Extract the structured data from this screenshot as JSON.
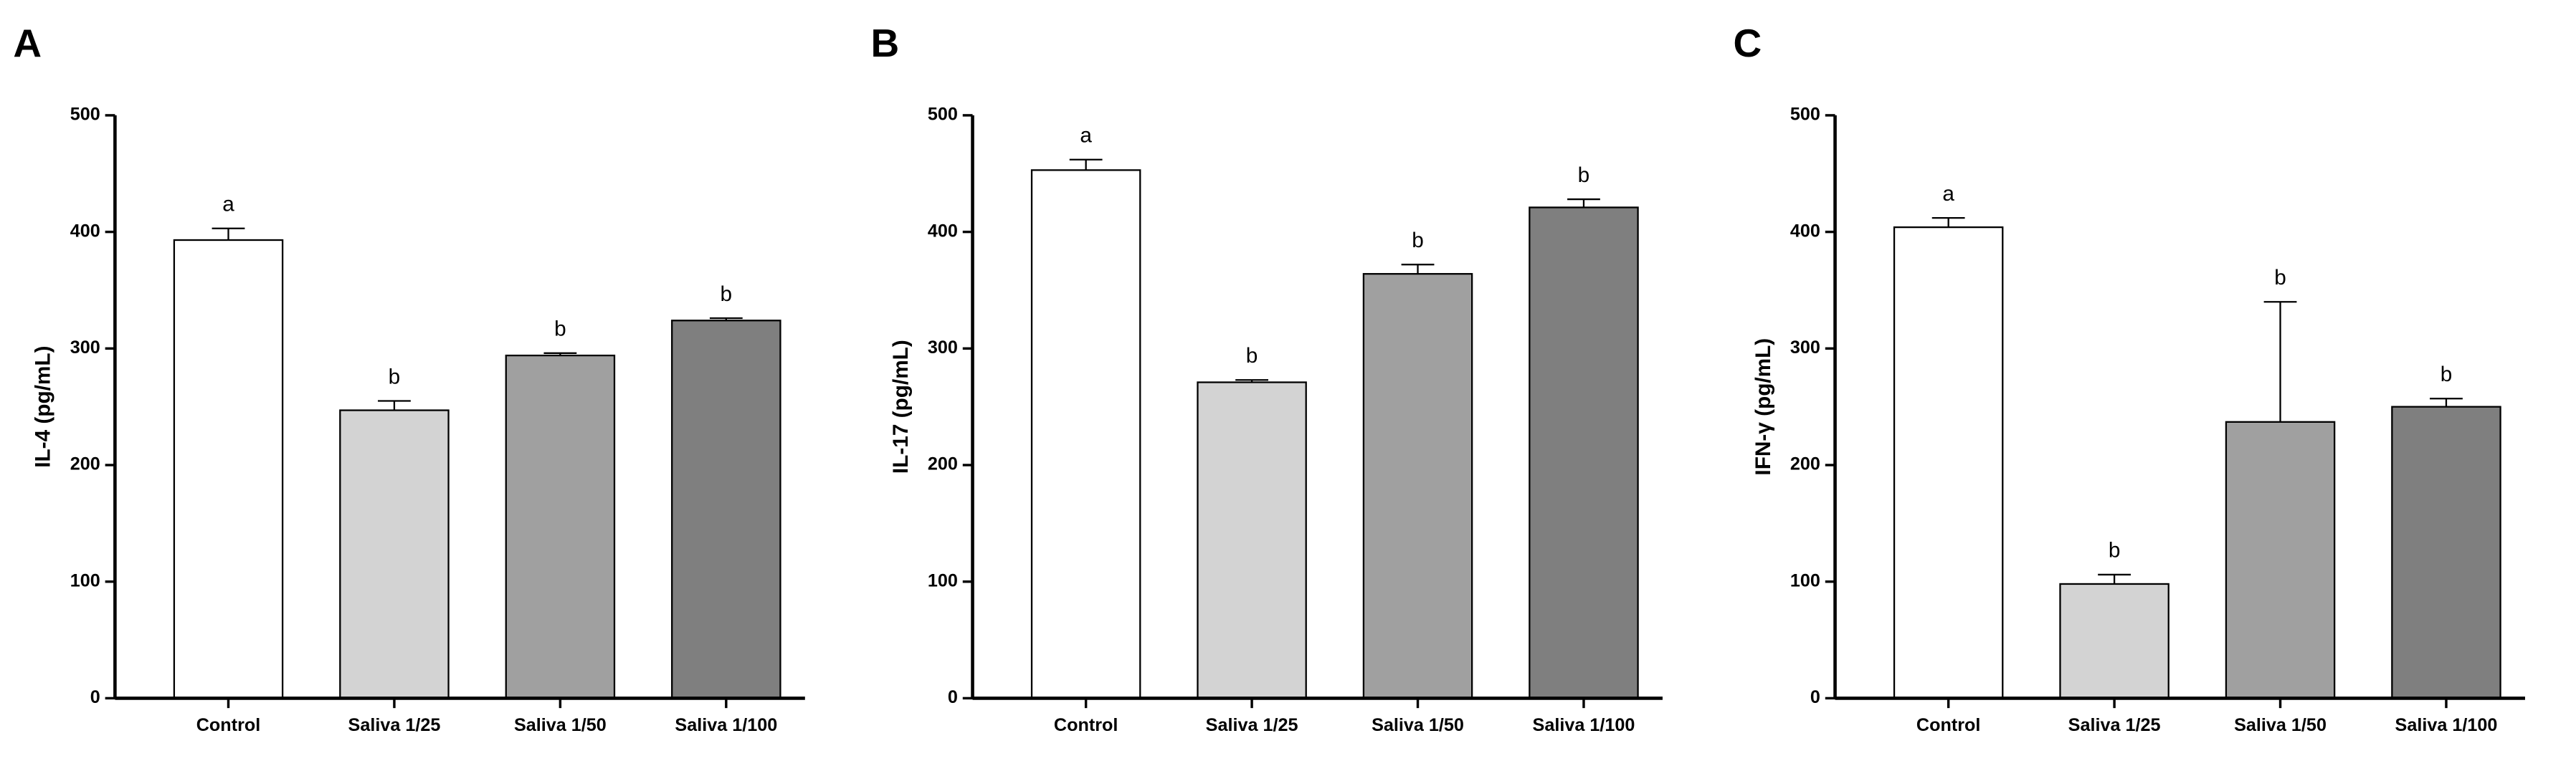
{
  "chart_data": [
    {
      "type": "bar",
      "panel": "A",
      "ylabel": "IL-4 (pg/mL)",
      "categories": [
        "Control",
        "Saliva 1/25",
        "Saliva 1/50",
        "Saliva 1/100"
      ],
      "values": [
        393,
        247,
        294,
        324
      ],
      "errors": [
        10,
        8,
        2,
        2
      ],
      "annotations": [
        "a",
        "b",
        "b",
        "b"
      ],
      "colors": [
        "#ffffff",
        "#d3d3d3",
        "#a0a0a0",
        "#7f7f7f"
      ],
      "ylim": [
        0,
        500
      ],
      "yticks": [
        0,
        100,
        200,
        300,
        400,
        500
      ]
    },
    {
      "type": "bar",
      "panel": "B",
      "ylabel": "IL-17 (pg/mL)",
      "categories": [
        "Control",
        "Saliva 1/25",
        "Saliva 1/50",
        "Saliva 1/100"
      ],
      "values": [
        453,
        271,
        364,
        421
      ],
      "errors": [
        9,
        2,
        8,
        7
      ],
      "annotations": [
        "a",
        "b",
        "b",
        "b"
      ],
      "colors": [
        "#ffffff",
        "#d3d3d3",
        "#a0a0a0",
        "#7f7f7f"
      ],
      "ylim": [
        0,
        500
      ],
      "yticks": [
        0,
        100,
        200,
        300,
        400,
        500
      ]
    },
    {
      "type": "bar",
      "panel": "C",
      "ylabel": "IFN-γ (pg/mL)",
      "categories": [
        "Control",
        "Saliva 1/25",
        "Saliva 1/50",
        "Saliva 1/100"
      ],
      "values": [
        404,
        98,
        237,
        250
      ],
      "errors": [
        8,
        8,
        103,
        7
      ],
      "annotations": [
        "a",
        "b",
        "b",
        "b"
      ],
      "colors": [
        "#ffffff",
        "#d3d3d3",
        "#a0a0a0",
        "#7f7f7f"
      ],
      "ylim": [
        0,
        500
      ],
      "yticks": [
        0,
        100,
        200,
        300,
        400,
        500
      ]
    }
  ]
}
